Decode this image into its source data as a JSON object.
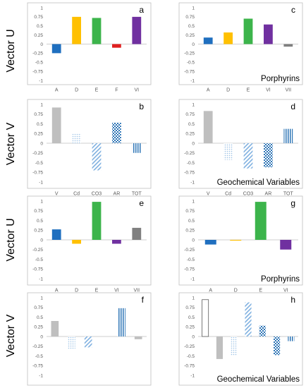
{
  "colors": {
    "blue": "#1f6fbf",
    "yellow": "#ffc000",
    "green": "#3cb44b",
    "red": "#e02020",
    "purple": "#7030a0",
    "gray": "#808080",
    "lightgray": "#bfbfbf",
    "patternblue": "#5b9bd5"
  },
  "row_labels": [
    "Vector U",
    "Vector V",
    "Vector U",
    "Vector V"
  ],
  "chart_data": [
    {
      "type": "bar",
      "panel": "a",
      "categories": [
        "A",
        "D",
        "E",
        "F",
        "VI"
      ],
      "values": [
        -0.25,
        0.75,
        0.72,
        -0.1,
        0.75
      ],
      "styles": [
        "blue",
        "yellow",
        "green",
        "red",
        "purple"
      ],
      "ylim": [
        -1,
        1
      ],
      "note": ""
    },
    {
      "type": "bar",
      "panel": "c",
      "categories": [
        "A",
        "D",
        "E",
        "VI",
        "VII"
      ],
      "values": [
        0.18,
        0.32,
        0.7,
        0.54,
        -0.07
      ],
      "styles": [
        "blue",
        "yellow",
        "green",
        "purple",
        "gray"
      ],
      "ylim": [
        -1,
        1
      ],
      "note": "Porphyrins"
    },
    {
      "type": "bar",
      "panel": "b",
      "categories": [
        "V",
        "Cd",
        "CO3",
        "AR",
        "TOT"
      ],
      "values": [
        0.92,
        0.24,
        -0.7,
        0.53,
        -0.25
      ],
      "styles": [
        "lightgray",
        "dots",
        "diagonal",
        "checker",
        "vlines"
      ],
      "ylim": [
        -1,
        1
      ],
      "note": ""
    },
    {
      "type": "bar",
      "panel": "d",
      "categories": [
        "V",
        "Cd",
        "CO3",
        "AR",
        "TOT"
      ],
      "values": [
        0.83,
        -0.43,
        -0.65,
        -0.62,
        0.37
      ],
      "styles": [
        "lightgray",
        "dots",
        "diagonal",
        "checker",
        "vlines"
      ],
      "ylim": [
        -1,
        1
      ],
      "note": "Geochemical Variables"
    },
    {
      "type": "bar",
      "panel": "e",
      "categories": [
        "A",
        "D",
        "E",
        "VI",
        "VII"
      ],
      "values": [
        0.27,
        -0.1,
        0.98,
        -0.1,
        0.31
      ],
      "styles": [
        "blue",
        "yellow",
        "green",
        "purple",
        "gray"
      ],
      "ylim": [
        -1,
        1
      ],
      "note": ""
    },
    {
      "type": "bar",
      "panel": "g",
      "categories": [
        "A",
        "D",
        "E",
        "VI"
      ],
      "values": [
        -0.12,
        -0.02,
        0.98,
        -0.25
      ],
      "styles": [
        "blue",
        "yellow",
        "green",
        "purple"
      ],
      "ylim": [
        -1,
        1
      ],
      "note": "Porphyrins"
    },
    {
      "type": "bar",
      "panel": "f",
      "categories": [
        "V",
        "CO",
        "CO3",
        "AR",
        "TOT",
        "ME"
      ],
      "values": [
        0.4,
        -0.32,
        -0.28,
        0.0,
        0.73,
        -0.07
      ],
      "styles": [
        "lightgray",
        "dots",
        "diagonal",
        "checker",
        "vlines",
        "lightgray"
      ],
      "ylim": [
        -1,
        1
      ],
      "note": ""
    },
    {
      "type": "bar",
      "panel": "h",
      "categories": [
        "Ni",
        "V",
        "CO",
        "CO3",
        "AL",
        "AR",
        "TOT"
      ],
      "values": [
        0.95,
        -0.58,
        -0.5,
        0.88,
        0.28,
        -0.48,
        -0.12
      ],
      "styles": [
        "outline",
        "lightgray",
        "dots",
        "diagonal",
        "checker",
        "checker",
        "vlines"
      ],
      "ylim": [
        -1,
        1
      ],
      "note": "Geochemical Variables"
    }
  ]
}
